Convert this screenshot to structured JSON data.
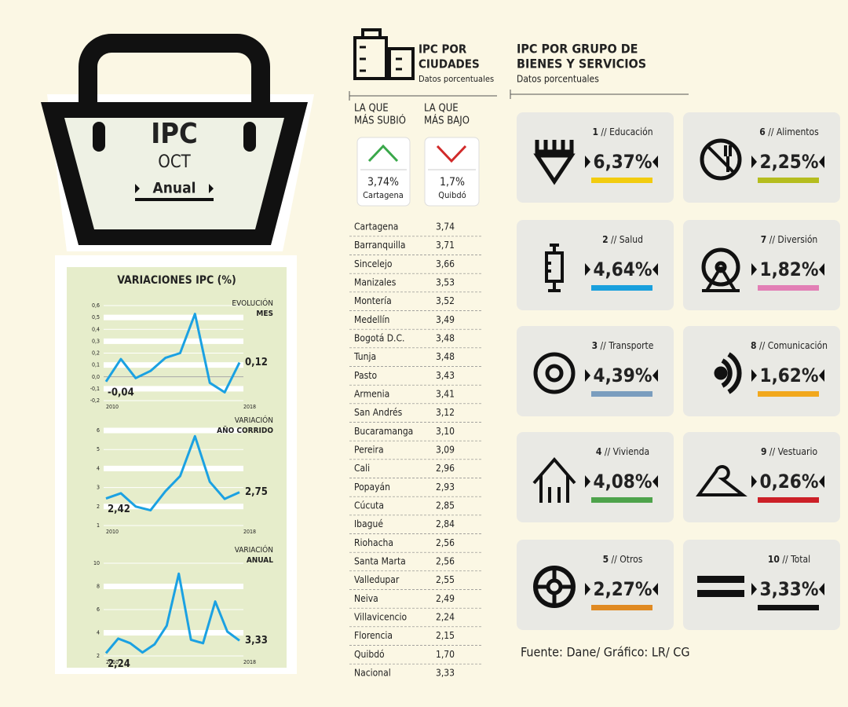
{
  "basket": {
    "title": "IPC",
    "month": "OCT",
    "mode": "Anual"
  },
  "panel_title": "VARIACIONES IPC (%)",
  "chart_data": [
    {
      "type": "line",
      "label": "EVOLUCIÓN",
      "sublabel": "MES",
      "color": "#1ba1e2",
      "grid": true,
      "categories": [
        "2010",
        null,
        null,
        null,
        null,
        null,
        null,
        null,
        null,
        "2018"
      ],
      "values": [
        -0.04,
        0.15,
        -0.01,
        0.05,
        0.16,
        0.2,
        0.53,
        -0.05,
        -0.13,
        0.12
      ],
      "value_labels": [
        "-0,04",
        null,
        null,
        null,
        null,
        null,
        null,
        null,
        null,
        "0,12"
      ],
      "ylim": [
        -0.2,
        0.6
      ],
      "yticks": [
        {
          "value": -0.2,
          "label": "-0,2"
        },
        {
          "value": -0.1,
          "label": "-0,1"
        },
        {
          "value": 0,
          "label": "0,0"
        },
        {
          "value": 0.1,
          "label": "0,1"
        },
        {
          "value": 0.2,
          "label": "0,2"
        },
        {
          "value": 0.3,
          "label": "0,3"
        },
        {
          "value": 0.4,
          "label": "0,4"
        },
        {
          "value": 0.5,
          "label": "0,5"
        },
        {
          "value": 0.6,
          "label": "0,6"
        }
      ]
    },
    {
      "type": "line",
      "label": "VARIACIÓN",
      "sublabel": "AÑO CORRIDO",
      "color": "#1ba1e2",
      "grid": true,
      "categories": [
        "2010",
        null,
        null,
        null,
        null,
        null,
        null,
        null,
        null,
        "2018"
      ],
      "values": [
        2.42,
        2.7,
        2.0,
        1.8,
        2.8,
        3.6,
        5.7,
        3.3,
        2.4,
        2.75
      ],
      "value_labels": [
        "2,42",
        null,
        null,
        null,
        null,
        null,
        null,
        null,
        null,
        "2,75"
      ],
      "ylim": [
        1,
        6
      ],
      "yticks": [
        1,
        2,
        3,
        4,
        5,
        6
      ]
    },
    {
      "type": "line",
      "label": "VARIACIÓN",
      "sublabel": "ANUAL",
      "color": "#1ba1e2",
      "grid": true,
      "categories": [
        "2010",
        null,
        null,
        null,
        null,
        null,
        null,
        null,
        null,
        null,
        null,
        "2018"
      ],
      "values": [
        2.24,
        3.5,
        3.1,
        2.3,
        3.0,
        4.6,
        9.1,
        3.4,
        3.1,
        6.7,
        4.1,
        3.33
      ],
      "value_labels": [
        "2,24",
        null,
        null,
        null,
        null,
        null,
        null,
        null,
        null,
        null,
        null,
        "3,33"
      ],
      "ylim": [
        2,
        10
      ],
      "yticks": [
        2,
        4,
        6,
        8,
        10
      ]
    }
  ],
  "cities": {
    "title": [
      "IPC POR",
      "CIUDADES"
    ],
    "subtitle": "Datos porcentuales",
    "highest": {
      "header": [
        "LA QUE",
        "MÁS SUBIÓ"
      ],
      "value": "3,74%",
      "city": "Cartagena"
    },
    "lowest": {
      "header": [
        "LA QUE",
        "MÁS BAJO"
      ],
      "value": "1,7%",
      "city": "Quibdó"
    },
    "rows": [
      [
        "Cartagena",
        "3,74"
      ],
      [
        "Barranquilla",
        "3,71"
      ],
      [
        "Sincelejo",
        "3,66"
      ],
      [
        "Manizales",
        "3,53"
      ],
      [
        "Montería",
        "3,52"
      ],
      [
        "Medellín",
        "3,49"
      ],
      [
        "Bogotá D.C.",
        "3,48"
      ],
      [
        "Tunja",
        "3,48"
      ],
      [
        "Pasto",
        "3,43"
      ],
      [
        "Armenia",
        "3,41"
      ],
      [
        "San Andrés",
        "3,12"
      ],
      [
        "Bucaramanga",
        "3,10"
      ],
      [
        "Pereira",
        "3,09"
      ],
      [
        "Cali",
        "2,96"
      ],
      [
        "Popayán",
        "2,93"
      ],
      [
        "Cúcuta",
        "2,85"
      ],
      [
        "Ibagué",
        "2,84"
      ],
      [
        "Riohacha",
        "2,56"
      ],
      [
        "Santa Marta",
        "2,56"
      ],
      [
        "Valledupar",
        "2,55"
      ],
      [
        "Neiva",
        "2,49"
      ],
      [
        "Villavicencio",
        "2,24"
      ],
      [
        "Florencia",
        "2,15"
      ],
      [
        "Quibdó",
        "1,70"
      ],
      [
        "Nacional",
        "3,33"
      ]
    ]
  },
  "groups": {
    "title": [
      "IPC POR GRUPO DE",
      "BIENES Y SERVICIOS"
    ],
    "subtitle": "Datos porcentuales",
    "separator": "//",
    "items": [
      {
        "number": "1",
        "name": "Educación",
        "value": "6,37%",
        "color": "#f2cc0f"
      },
      {
        "number": "2",
        "name": "Salud",
        "value": "4,64%",
        "color": "#1aa0dd"
      },
      {
        "number": "3",
        "name": "Transporte",
        "value": "4,39%",
        "color": "#7a9dbe"
      },
      {
        "number": "4",
        "name": "Vivienda",
        "value": "4,08%",
        "color": "#4ea34b"
      },
      {
        "number": "5",
        "name": "Otros",
        "value": "2,27%",
        "color": "#e08a22"
      },
      {
        "number": "6",
        "name": "Alimentos",
        "value": "2,25%",
        "color": "#b5bd1e"
      },
      {
        "number": "7",
        "name": "Diversión",
        "value": "1,82%",
        "color": "#e27fb5"
      },
      {
        "number": "8",
        "name": "Comunicación",
        "value": "1,62%",
        "color": "#f2a81d"
      },
      {
        "number": "9",
        "name": "Vestuario",
        "value": "0,26%",
        "color": "#cc2027"
      },
      {
        "number": "10",
        "name": "Total",
        "value": "3,33%",
        "color": "#111111"
      }
    ]
  },
  "footer": "Fuente: Dane/ Gráfico: LR/ CG"
}
